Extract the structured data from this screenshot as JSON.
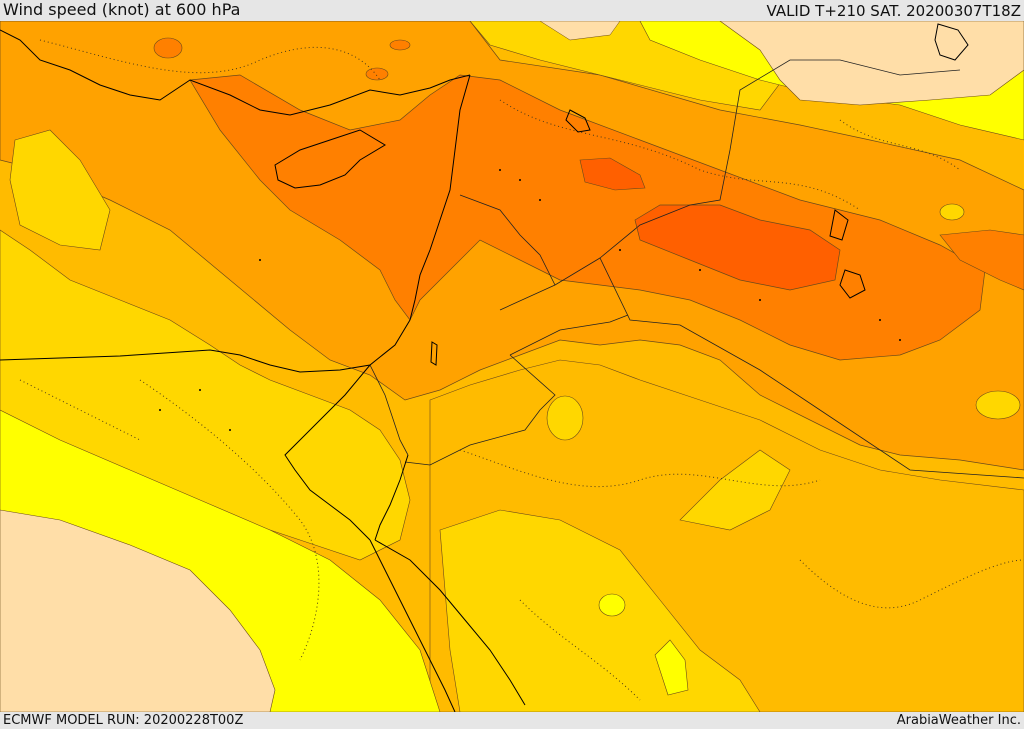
{
  "header": {
    "title": "Wind speed (knot) at 600 hPa",
    "valid": "VALID T+210 SAT. 20200307T18Z"
  },
  "footer": {
    "model_run": "ECMWF MODEL RUN: 20200228T00Z",
    "credit": "ArabiaWeather Inc."
  },
  "map": {
    "colors": {
      "band_0_10": "#ffdea8",
      "band_10_20": "#ffff00",
      "band_20_30": "#ffd700",
      "band_30_40": "#ffbb00",
      "band_40_50": "#ffa200",
      "band_50_60": "#ff8000",
      "band_60_70": "#ff6000",
      "contour": "#6b4a1a",
      "coast": "#000000"
    }
  }
}
